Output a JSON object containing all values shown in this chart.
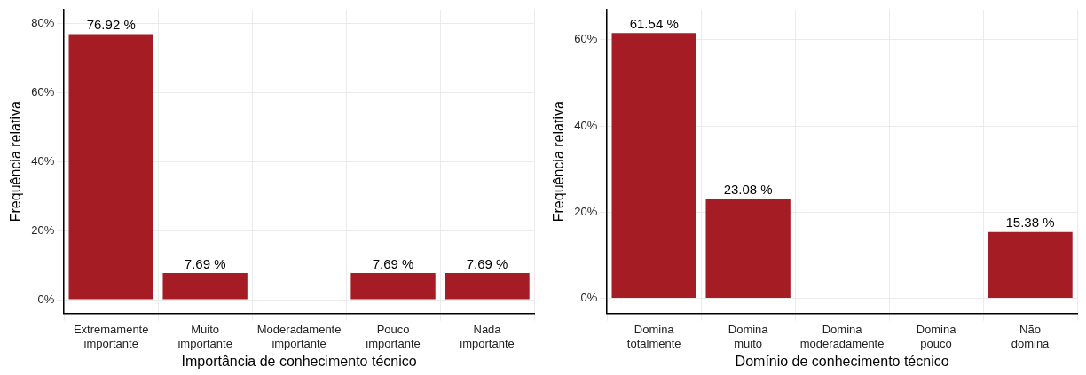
{
  "chart_data": [
    {
      "type": "bar",
      "xlabel": "Importância de conhecimento técnico",
      "ylabel": "Frequência relativa",
      "categories": [
        "Extremamente importante",
        "Muito importante",
        "Moderadamente importante",
        "Pouco importante",
        "Nada importante"
      ],
      "values": [
        76.92,
        7.69,
        0,
        7.69,
        7.69
      ],
      "value_labels": [
        "76.92 %",
        "7.69 %",
        null,
        "7.69 %",
        "7.69 %"
      ],
      "color": "#a51c24",
      "ylim": [
        -4,
        84
      ],
      "yticks": [
        {
          "value": 0,
          "label": "0%"
        },
        {
          "value": 20,
          "label": "20%"
        },
        {
          "value": 40,
          "label": "40%"
        },
        {
          "value": 60,
          "label": "60%"
        },
        {
          "value": 80,
          "label": "80%"
        }
      ],
      "grid": true
    },
    {
      "type": "bar",
      "xlabel": "Domínio de conhecimento técnico",
      "ylabel": "Frequência relativa",
      "categories": [
        "Domina totalmente",
        "Domina muito",
        "Domina moderadamente",
        "Domina pouco",
        "Não domina"
      ],
      "values": [
        61.54,
        23.08,
        0,
        0,
        15.38
      ],
      "value_labels": [
        "61.54 %",
        "23.08 %",
        null,
        null,
        "15.38 %"
      ],
      "color": "#a51c24",
      "ylim": [
        -3.5,
        67
      ],
      "yticks": [
        {
          "value": 0,
          "label": "0%"
        },
        {
          "value": 20,
          "label": "20%"
        },
        {
          "value": 40,
          "label": "40%"
        },
        {
          "value": 60,
          "label": "60%"
        }
      ],
      "grid": true
    }
  ]
}
